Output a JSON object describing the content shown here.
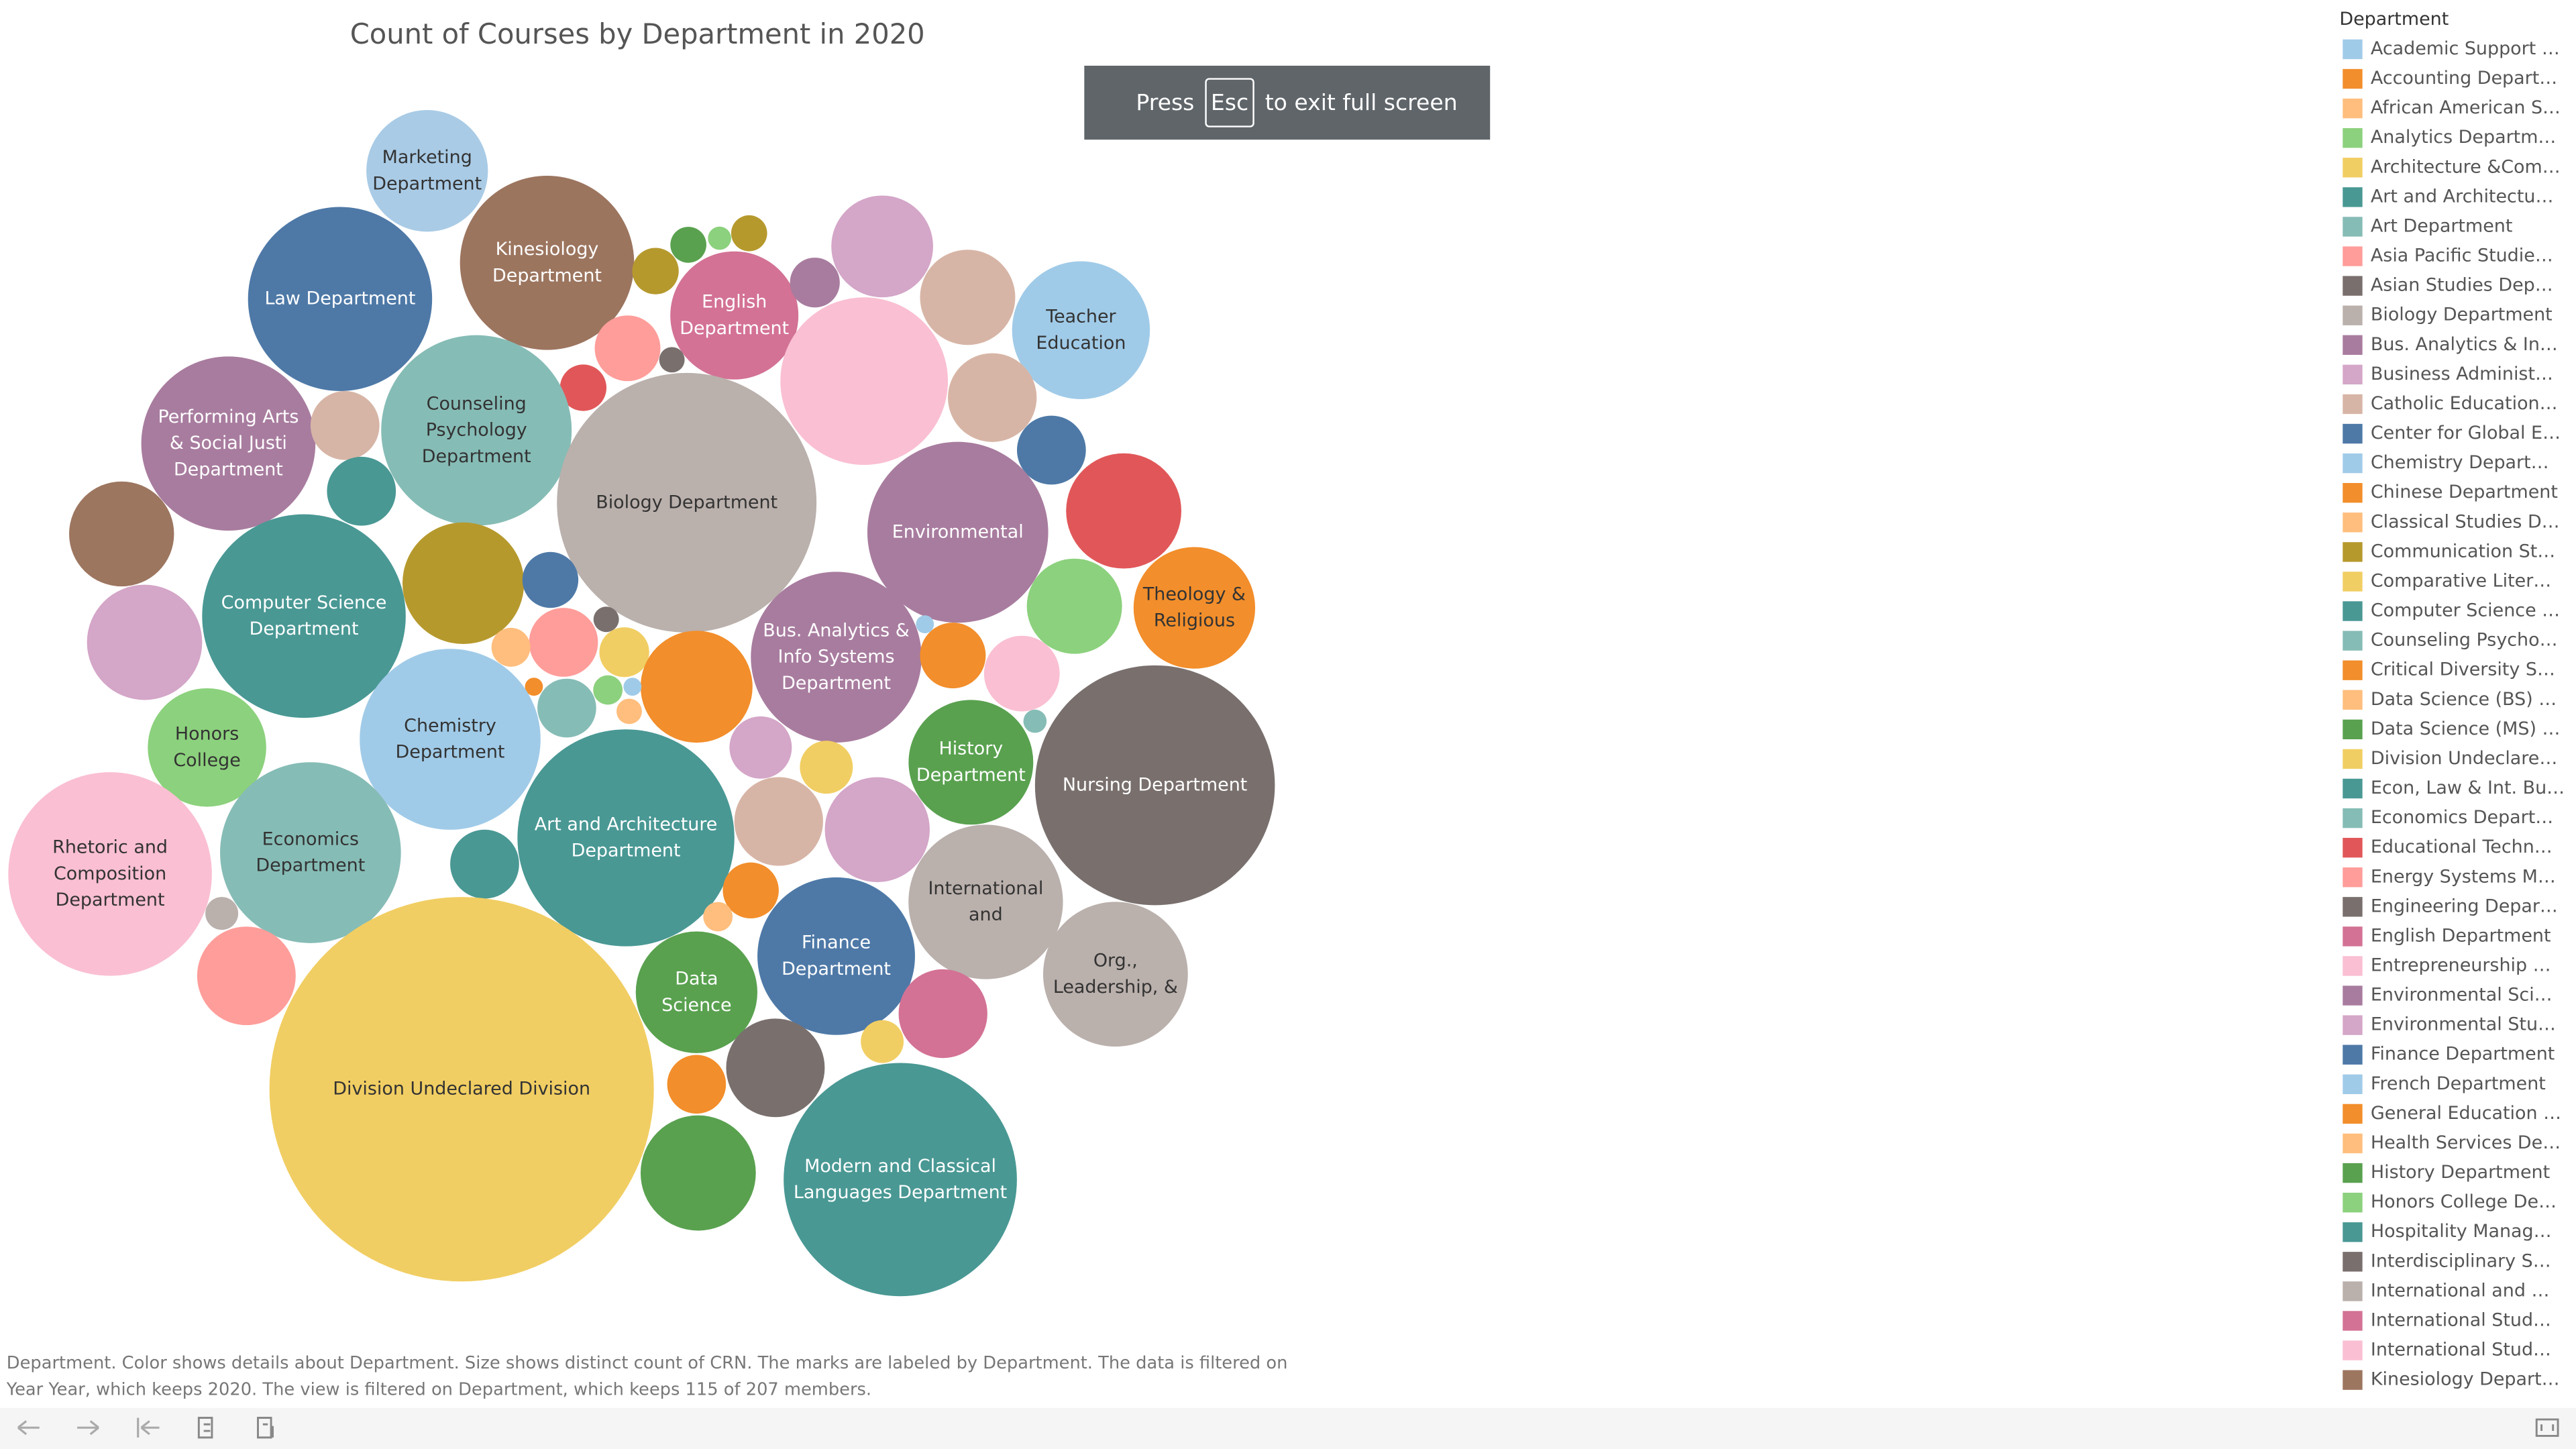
{
  "chart_data": {
    "type": "packed-bubble",
    "title": "Count of Courses by Department in 2020",
    "categories": [
      "Marketing Department",
      "Law Department",
      "Kinesiology Department",
      "English Department",
      null,
      null,
      null,
      null,
      null,
      null,
      null,
      "Teacher Education",
      null,
      null,
      null,
      "Counseling Psychology Department",
      "Biology Department",
      null,
      null,
      null,
      "Performing Arts & Social Justi Department",
      null,
      null,
      null,
      "Environmental",
      null,
      null,
      "Theology & Religious",
      "Computer Science Department",
      null,
      null,
      null,
      null,
      null,
      null,
      "Bus. Analytics & Info Systems Department",
      null,
      null,
      null,
      null,
      null,
      null,
      null,
      null,
      null,
      null,
      null,
      "Chemistry Department",
      "Honors College",
      null,
      null,
      "History Department",
      "Nursing Department",
      "Rhetoric and Composition Department",
      "Economics Department",
      null,
      "Art and Architecture Department",
      null,
      null,
      "International and",
      "Org., Leadership, &",
      null,
      null,
      null,
      null,
      "Finance Department",
      "Data Science",
      null,
      null,
      "Division Undeclared Division",
      null,
      null,
      null,
      "Modern and Classical Languages Department"
    ],
    "values": [
      137,
      314,
      281,
      152,
      20,
      12,
      5,
      12,
      23,
      96,
      84,
      176,
      40,
      6,
      20,
      336,
      624,
      260,
      73,
      44,
      281,
      44,
      44,
      102,
      303,
      123,
      84,
      137,
      384,
      137,
      29,
      6,
      44,
      14,
      23,
      270,
      3,
      40,
      53,
      5,
      116,
      123,
      3,
      32,
      8,
      3,
      6,
      303,
      130,
      36,
      26,
      144,
      533,
      384,
      303,
      44,
      436,
      73,
      102,
      221,
      194,
      10,
      90,
      29,
      8,
      230,
      137,
      73,
      17,
      1369,
      90,
      32,
      123,
      504
    ],
    "colors": [
      "#a9cbe6",
      "#4e79a7",
      "#9c755f",
      "#d37295",
      "#b6992d",
      "#59a14f",
      "#8cd17d",
      "#b6992d",
      "#a87c9f",
      "#d4a6c8",
      "#d7b5a6",
      "#a0cbe8",
      "#ff9d9a",
      "#79706e",
      "#e15759",
      "#86bcb6",
      "#bab0ac",
      "#fabfd2",
      "#d7b5a6",
      "#4e79a7",
      "#a87c9f",
      "#d7b5a6",
      "#499894",
      "#9d7660",
      "#a87c9f",
      "#e15759",
      "#8cd17d",
      "#f28e2b",
      "#499894",
      "#b6992d",
      "#4e79a7",
      "#79706e",
      "#ff9d9a",
      "#ffbe7d",
      "#f1ce63",
      "#a87c9f",
      "#a0cbe8",
      "#f28e2b",
      "#fabfd2",
      "#86bcb6",
      "#f28e2b",
      "#d4a6c8",
      "#f28e2b",
      "#86bcb6",
      "#8cd17d",
      "#a0cbe8",
      "#ffbe7d",
      "#a0cbe8",
      "#8cd17d",
      "#d4a6c8",
      "#f1ce63",
      "#59a14f",
      "#79706e",
      "#fabfd2",
      "#86bcb6",
      "#499894",
      "#499894",
      "#d7b5a6",
      "#d4a6c8",
      "#bab0ac",
      "#bab0ac",
      "#bab0ac",
      "#ff9d9a",
      "#f28e2b",
      "#ffbe7d",
      "#4e79a7",
      "#59a14f",
      "#d37295",
      "#f1ce63",
      "#f1ce63",
      "#79706e",
      "#f28e2b",
      "#59a14f",
      "#499894"
    ],
    "legend": {
      "title": "Department",
      "position": "right",
      "items": [
        {
          "label": "Academic Support …",
          "color": "#a0cbe8"
        },
        {
          "label": "Accounting Depart…",
          "color": "#f28e2b"
        },
        {
          "label": "African American S…",
          "color": "#ffbe7d"
        },
        {
          "label": "Analytics Departm…",
          "color": "#8cd17d"
        },
        {
          "label": "Architecture &Com…",
          "color": "#f1ce63"
        },
        {
          "label": "Art and Architectu…",
          "color": "#499894"
        },
        {
          "label": "Art Department",
          "color": "#86bcb6"
        },
        {
          "label": "Asia Pacific Studie…",
          "color": "#ff9d9a"
        },
        {
          "label": "Asian Studies Dep…",
          "color": "#79706e"
        },
        {
          "label": "Biology Department",
          "color": "#bab0ac"
        },
        {
          "label": "Bus. Analytics & In…",
          "color": "#a87c9f"
        },
        {
          "label": "Business Administ…",
          "color": "#d4a6c8"
        },
        {
          "label": "Catholic Education…",
          "color": "#d7b5a6"
        },
        {
          "label": "Center for Global E…",
          "color": "#4e79a7"
        },
        {
          "label": "Chemistry Depart…",
          "color": "#a0cbe8"
        },
        {
          "label": "Chinese Department",
          "color": "#f28e2b"
        },
        {
          "label": "Classical Studies D…",
          "color": "#ffbe7d"
        },
        {
          "label": "Communication St…",
          "color": "#b6992d"
        },
        {
          "label": "Comparative Liter…",
          "color": "#f1ce63"
        },
        {
          "label": "Computer Science …",
          "color": "#499894"
        },
        {
          "label": "Counseling Psycho…",
          "color": "#86bcb6"
        },
        {
          "label": "Critical Diversity S…",
          "color": "#f28e2b"
        },
        {
          "label": "Data Science (BS) …",
          "color": "#ffbe7d"
        },
        {
          "label": "Data Science (MS) …",
          "color": "#59a14f"
        },
        {
          "label": "Division Undeclare…",
          "color": "#f1ce63"
        },
        {
          "label": "Econ, Law & Int. Bu…",
          "color": "#499894"
        },
        {
          "label": "Economics Depart…",
          "color": "#86bcb6"
        },
        {
          "label": "Educational Techn…",
          "color": "#e15759"
        },
        {
          "label": "Energy Systems M…",
          "color": "#ff9d9a"
        },
        {
          "label": "Engineering Depar…",
          "color": "#79706e"
        },
        {
          "label": "English Department",
          "color": "#d37295"
        },
        {
          "label": "Entrepreneurship …",
          "color": "#fabfd2"
        },
        {
          "label": "Environmental Sci…",
          "color": "#a87c9f"
        },
        {
          "label": "Environmental Stu…",
          "color": "#d4a6c8"
        },
        {
          "label": "Finance Department",
          "color": "#4e79a7"
        },
        {
          "label": "French Department",
          "color": "#a0cbe8"
        },
        {
          "label": "General Education …",
          "color": "#f28e2b"
        },
        {
          "label": "Health Services De…",
          "color": "#ffbe7d"
        },
        {
          "label": "History Department",
          "color": "#59a14f"
        },
        {
          "label": "Honors College De…",
          "color": "#8cd17d"
        },
        {
          "label": "Hospitality Manag…",
          "color": "#499894"
        },
        {
          "label": "Interdisciplinary S…",
          "color": "#79706e"
        },
        {
          "label": "International and …",
          "color": "#bab0ac"
        },
        {
          "label": "International Stud…",
          "color": "#d37295"
        },
        {
          "label": "International Stud…",
          "color": "#fabfd2"
        },
        {
          "label": "Kinesiology Depart…",
          "color": "#9d7660"
        }
      ]
    },
    "caption": [
      "Department.  Color shows details about Department.  Size shows distinct count of CRN.  The marks are labeled by Department. The data is filtered on",
      "Year Year, which keeps 2020. The view is filtered on Department, which keeps 115 of 207 members."
    ]
  },
  "overlay": {
    "before": "Press",
    "key": "Esc",
    "after": "to exit full screen"
  }
}
